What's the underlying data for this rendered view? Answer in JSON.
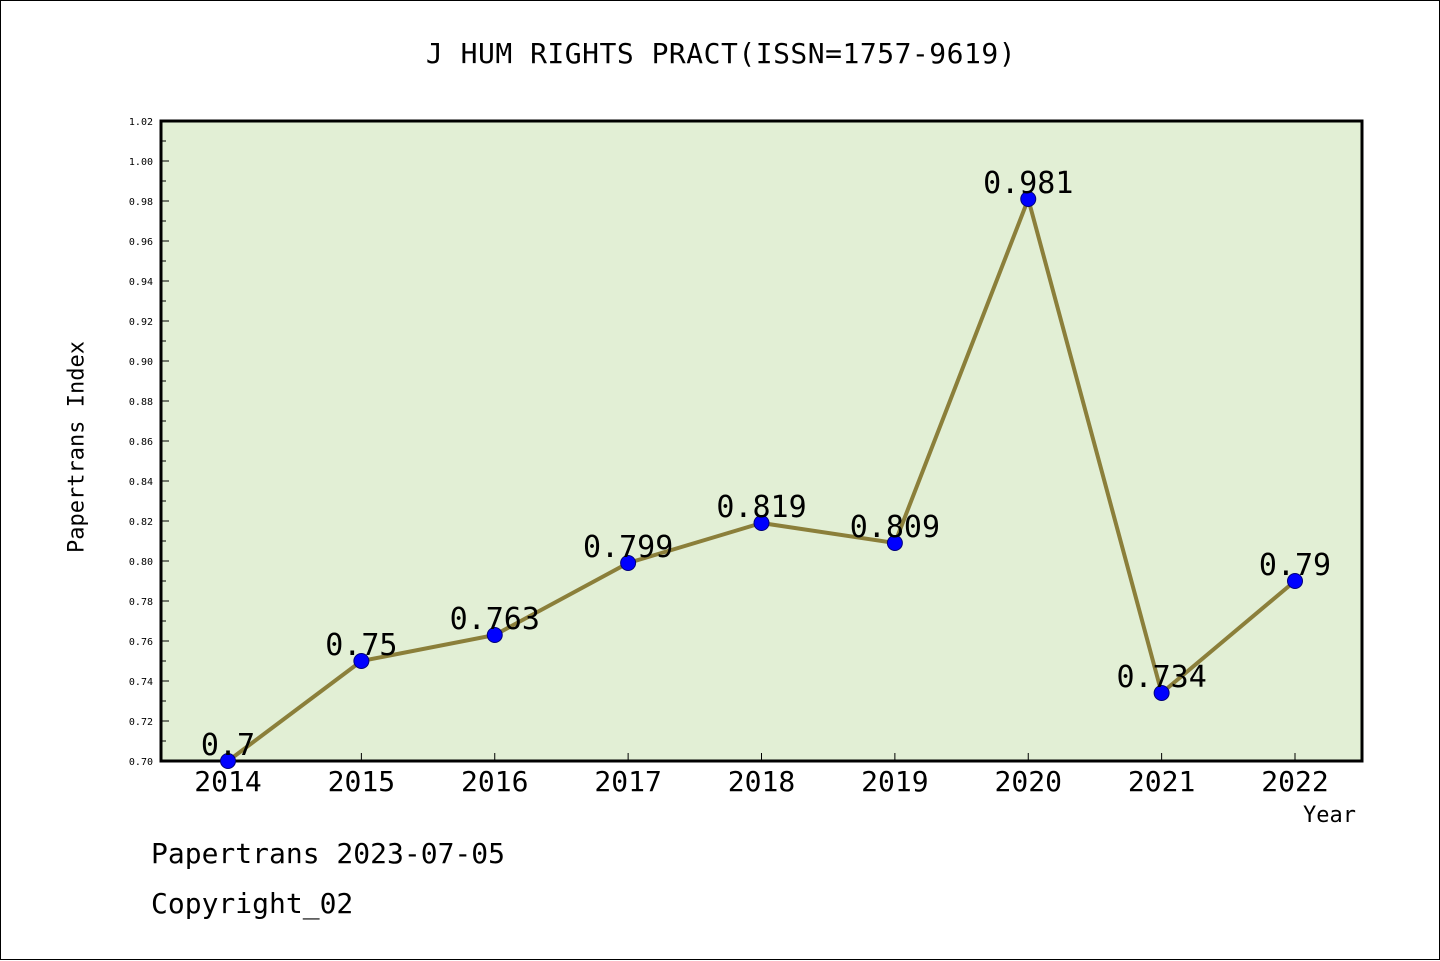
{
  "chart_data": {
    "type": "line",
    "title": "J HUM RIGHTS PRACT(ISSN=1757-9619)",
    "xlabel": "Year",
    "ylabel": "Papertrans Index",
    "categories": [
      "2014",
      "2015",
      "2016",
      "2017",
      "2018",
      "2019",
      "2020",
      "2021",
      "2022"
    ],
    "series": [
      {
        "values": [
          0.7,
          0.75,
          0.763,
          0.799,
          0.819,
          0.809,
          0.981,
          0.734,
          0.79
        ]
      }
    ],
    "data_labels": [
      "0.7",
      "0.75",
      "0.763",
      "0.799",
      "0.819",
      "0.809",
      "0.981",
      "0.734",
      "0.79"
    ],
    "ylim": [
      0.7,
      1.02
    ],
    "yticks": [
      "0.70",
      "0.72",
      "0.74",
      "0.76",
      "0.78",
      "0.80",
      "0.82",
      "0.84",
      "0.86",
      "0.88",
      "0.90",
      "0.92",
      "0.94",
      "0.96",
      "0.98",
      "1.00",
      "1.02"
    ],
    "grid": false,
    "legend": "none",
    "colors": {
      "plot_background": "#e2efd5",
      "line": "#8b7f3a",
      "marker": "#0000ff",
      "marker_edge": "#00007a"
    }
  },
  "footer": {
    "line1": "Papertrans 2023-07-05",
    "line2": "Copyright_02"
  }
}
